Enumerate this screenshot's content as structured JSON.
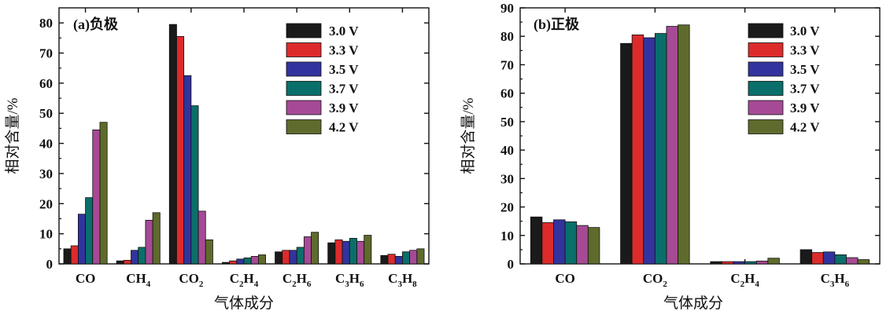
{
  "colors": [
    "#1a1a1a",
    "#dd2b2b",
    "#33339f",
    "#0a6f6a",
    "#a64a95",
    "#5e6b2c"
  ],
  "chart_data": [
    {
      "type": "bar",
      "title": "(a)负极",
      "xlabel": "气体成分",
      "ylabel": "相对含量/%",
      "ylim": [
        0,
        85
      ],
      "yticks": [
        0,
        10,
        20,
        30,
        40,
        50,
        60,
        70,
        80
      ],
      "legend": "top-right",
      "categories": [
        {
          "base": "CO",
          "sub": ""
        },
        {
          "base": "CH",
          "sub": "4"
        },
        {
          "base": "CO",
          "sub": "2"
        },
        {
          "base": "C2H4",
          "sub": ""
        },
        {
          "base": "C2H6",
          "sub": ""
        },
        {
          "base": "C3H6",
          "sub": ""
        },
        {
          "base": "C3H8",
          "sub": ""
        }
      ],
      "series": [
        {
          "name": "3.0 V",
          "values": [
            5.0,
            1.0,
            79.5,
            0.5,
            4.0,
            7.0,
            2.8
          ]
        },
        {
          "name": "3.3 V",
          "values": [
            6.0,
            1.2,
            75.5,
            1.0,
            4.5,
            8.0,
            3.2
          ]
        },
        {
          "name": "3.5 V",
          "values": [
            16.5,
            4.5,
            62.5,
            1.6,
            4.5,
            7.5,
            2.5
          ]
        },
        {
          "name": "3.7 V",
          "values": [
            22.0,
            5.5,
            52.5,
            2.0,
            5.5,
            8.5,
            4.0
          ]
        },
        {
          "name": "3.9 V",
          "values": [
            44.5,
            14.5,
            17.5,
            2.5,
            9.0,
            7.5,
            4.5
          ]
        },
        {
          "name": "4.2 V",
          "values": [
            47.0,
            17.0,
            8.0,
            3.0,
            10.5,
            9.5,
            5.0
          ]
        }
      ]
    },
    {
      "type": "bar",
      "title": "(b)正极",
      "xlabel": "气体成分",
      "ylabel": "相对含量/%",
      "ylim": [
        0,
        90
      ],
      "yticks": [
        0,
        10,
        20,
        30,
        40,
        50,
        60,
        70,
        80,
        90
      ],
      "legend": "top-right",
      "categories": [
        {
          "base": "CO",
          "sub": ""
        },
        {
          "base": "CO",
          "sub": "2"
        },
        {
          "base": "C2H4",
          "sub": ""
        },
        {
          "base": "C3H6",
          "sub": ""
        }
      ],
      "series": [
        {
          "name": "3.0 V",
          "values": [
            16.5,
            77.5,
            0.8,
            5.0
          ]
        },
        {
          "name": "3.3 V",
          "values": [
            14.5,
            80.5,
            0.8,
            4.0
          ]
        },
        {
          "name": "3.5 V",
          "values": [
            15.5,
            79.5,
            0.8,
            4.2
          ]
        },
        {
          "name": "3.7 V",
          "values": [
            14.8,
            81.0,
            0.8,
            3.2
          ]
        },
        {
          "name": "3.9 V",
          "values": [
            13.5,
            83.5,
            1.0,
            2.2
          ]
        },
        {
          "name": "4.2 V",
          "values": [
            12.8,
            84.0,
            2.0,
            1.5
          ]
        }
      ]
    }
  ]
}
